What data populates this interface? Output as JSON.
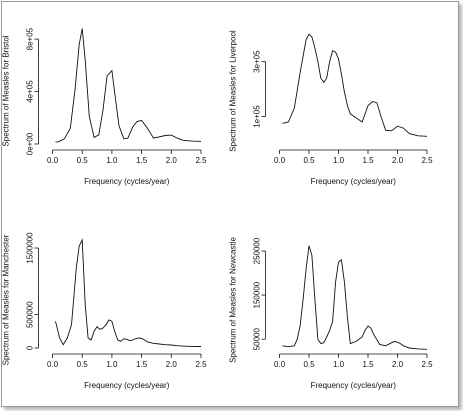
{
  "chart_data": [
    {
      "type": "line",
      "xlabel": "Frequency (cycles/year)",
      "ylabel": "Spectrum of Measles for  Bristol",
      "xlim": [
        0,
        2.5
      ],
      "ylim": [
        0,
        900000
      ],
      "xticks": [
        0.0,
        0.5,
        1.0,
        1.5,
        2.0,
        2.5
      ],
      "xtick_labels": [
        "0.0",
        "0.5",
        "1.0",
        "1.5",
        "2.0",
        "2.5"
      ],
      "yticks": [
        0,
        400000,
        800000
      ],
      "ytick_labels": [
        "0e+00",
        "4e+05",
        "8e+05"
      ],
      "series": [
        {
          "x": [
            0.05,
            0.1,
            0.2,
            0.3,
            0.38,
            0.45,
            0.5,
            0.55,
            0.62,
            0.7,
            0.78,
            0.85,
            0.92,
            1.0,
            1.05,
            1.12,
            1.2,
            1.27,
            1.35,
            1.42,
            1.5,
            1.6,
            1.7,
            1.8,
            1.9,
            2.0,
            2.1,
            2.2,
            2.35,
            2.5
          ],
          "y": [
            15000,
            17000,
            40000,
            120000,
            420000,
            760000,
            880000,
            640000,
            210000,
            50000,
            70000,
            260000,
            520000,
            560000,
            380000,
            140000,
            40000,
            45000,
            130000,
            170000,
            180000,
            120000,
            45000,
            55000,
            65000,
            68000,
            45000,
            28000,
            22000,
            20000
          ]
        }
      ]
    },
    {
      "type": "line",
      "xlabel": "Frequency (cycles/year)",
      "ylabel": "Spectrum of Measles for  Liverpool",
      "xlim": [
        0,
        2.5
      ],
      "ylim": [
        0,
        430000
      ],
      "xticks": [
        0.0,
        0.5,
        1.0,
        1.5,
        2.0,
        2.5
      ],
      "xtick_labels": [
        "0.0",
        "0.5",
        "1.0",
        "1.5",
        "2.0",
        "2.5"
      ],
      "yticks": [
        100000,
        300000
      ],
      "ytick_labels": [
        "1e+05",
        "3e+05"
      ],
      "series": [
        {
          "x": [
            0.05,
            0.15,
            0.25,
            0.35,
            0.45,
            0.5,
            0.55,
            0.6,
            0.65,
            0.7,
            0.75,
            0.8,
            0.85,
            0.9,
            0.95,
            1.0,
            1.05,
            1.1,
            1.15,
            1.2,
            1.3,
            1.4,
            1.5,
            1.58,
            1.65,
            1.72,
            1.8,
            1.9,
            2.0,
            2.1,
            2.2,
            2.35,
            2.5
          ],
          "y": [
            75000,
            80000,
            130000,
            260000,
            380000,
            400000,
            390000,
            350000,
            300000,
            240000,
            225000,
            240000,
            300000,
            340000,
            335000,
            310000,
            255000,
            190000,
            140000,
            110000,
            95000,
            80000,
            140000,
            155000,
            150000,
            100000,
            50000,
            48000,
            65000,
            58000,
            38000,
            30000,
            28000
          ]
        }
      ]
    },
    {
      "type": "line",
      "xlabel": "Frequency (cycles/year)",
      "ylabel": "Spectrum of Measles for  Manchester",
      "xlim": [
        0,
        2.5
      ],
      "ylim": [
        0,
        1620000
      ],
      "xticks": [
        0.0,
        0.5,
        1.0,
        1.5,
        2.0,
        2.5
      ],
      "xtick_labels": [
        "0.0",
        "0.5",
        "1.0",
        "1.5",
        "2.0",
        "2.5"
      ],
      "yticks": [
        0,
        500000,
        1500000
      ],
      "ytick_labels": [
        "0",
        "500000",
        "1500000"
      ],
      "series": [
        {
          "x": [
            0.05,
            0.12,
            0.18,
            0.25,
            0.32,
            0.4,
            0.45,
            0.5,
            0.55,
            0.6,
            0.65,
            0.7,
            0.75,
            0.8,
            0.85,
            0.9,
            0.95,
            1.0,
            1.05,
            1.1,
            1.15,
            1.2,
            1.25,
            1.3,
            1.35,
            1.4,
            1.45,
            1.5,
            1.55,
            1.6,
            1.7,
            1.8,
            1.9,
            2.0,
            2.1,
            2.2,
            2.35,
            2.5
          ],
          "y": [
            400000,
            150000,
            50000,
            150000,
            350000,
            1200000,
            1530000,
            1620000,
            650000,
            150000,
            120000,
            250000,
            320000,
            280000,
            300000,
            350000,
            420000,
            400000,
            240000,
            120000,
            100000,
            140000,
            130000,
            110000,
            120000,
            140000,
            150000,
            145000,
            120000,
            90000,
            70000,
            60000,
            50000,
            45000,
            35000,
            28000,
            24000,
            22000
          ]
        }
      ]
    },
    {
      "type": "line",
      "xlabel": "Frequency (cycles/year)",
      "ylabel": "Spectrum of Measles for  Newcastle",
      "xlim": [
        0,
        2.5
      ],
      "ylim": [
        30000,
        275000
      ],
      "xticks": [
        0.0,
        0.5,
        1.0,
        1.5,
        2.0,
        2.5
      ],
      "xtick_labels": [
        "0.0",
        "0.5",
        "1.0",
        "1.5",
        "2.0",
        "2.5"
      ],
      "yticks": [
        50000,
        150000,
        250000
      ],
      "ytick_labels": [
        "50000",
        "150000",
        "250000"
      ],
      "series": [
        {
          "x": [
            0.05,
            0.15,
            0.25,
            0.3,
            0.35,
            0.4,
            0.45,
            0.5,
            0.55,
            0.6,
            0.65,
            0.7,
            0.75,
            0.8,
            0.85,
            0.9,
            0.95,
            1.0,
            1.05,
            1.1,
            1.15,
            1.2,
            1.3,
            1.4,
            1.45,
            1.5,
            1.55,
            1.6,
            1.7,
            1.8,
            1.9,
            1.95,
            2.0,
            2.05,
            2.1,
            2.2,
            2.35,
            2.5
          ],
          "y": [
            35000,
            33000,
            35000,
            50000,
            80000,
            140000,
            210000,
            262000,
            240000,
            140000,
            50000,
            40000,
            42000,
            55000,
            70000,
            90000,
            180000,
            225000,
            230000,
            180000,
            100000,
            40000,
            45000,
            55000,
            70000,
            80000,
            75000,
            60000,
            38000,
            35000,
            42000,
            45000,
            43000,
            40000,
            35000,
            30000,
            28000,
            27000
          ]
        }
      ]
    }
  ]
}
